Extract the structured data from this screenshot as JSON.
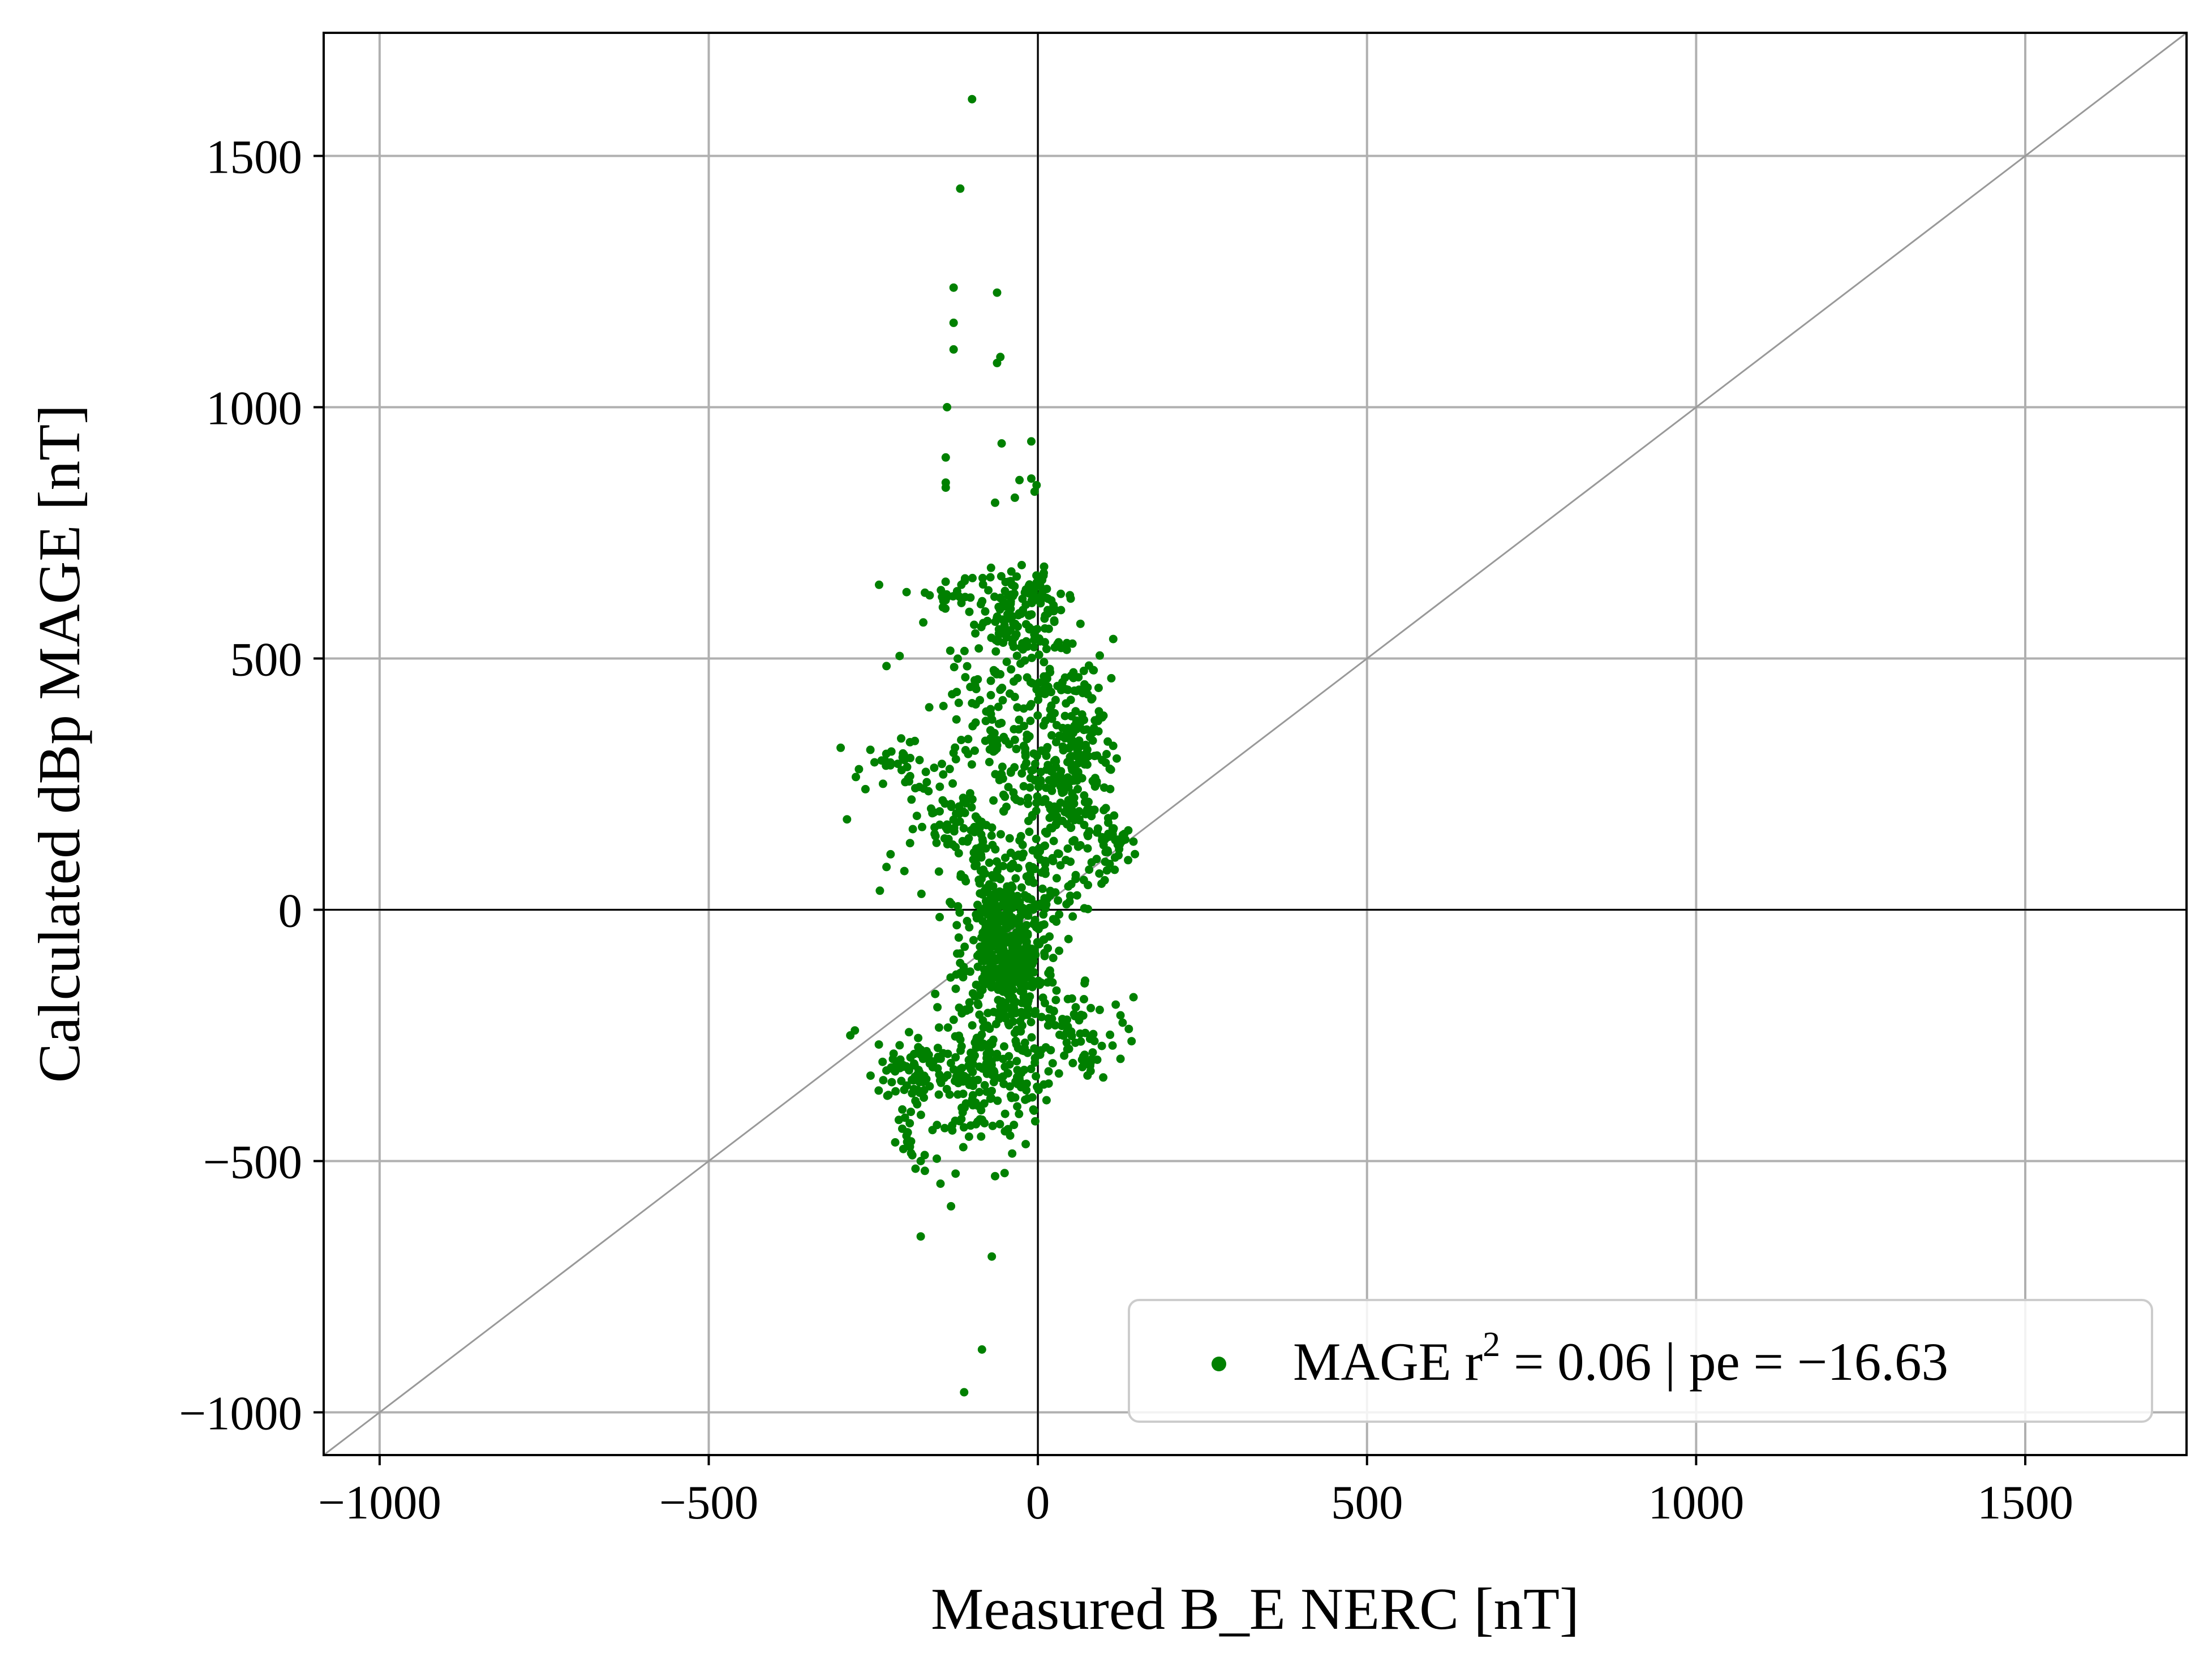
{
  "chart_data": {
    "type": "scatter",
    "title": "",
    "xlabel": "Measured B_E NERC [nT]",
    "ylabel": "Calculated dBp MAGE [nT]",
    "xlim": [
      -1085,
      1745
    ],
    "ylim": [
      -1085,
      1745
    ],
    "x_ticks": [
      -1000,
      -500,
      0,
      500,
      1000,
      1500
    ],
    "y_ticks": [
      -1000,
      -500,
      0,
      500,
      1000,
      1500
    ],
    "x_tick_labels": [
      "−1000",
      "−500",
      "0",
      "500",
      "1000",
      "1500"
    ],
    "y_tick_labels": [
      "−1000",
      "−500",
      "0",
      "500",
      "1000",
      "1500"
    ],
    "grid": true,
    "zero_lines": true,
    "reference_line": "y = x",
    "legend_position": "lower-right",
    "colors": {
      "series": "#008000",
      "grid": "#b0b0b0",
      "reference": "#999999",
      "axes": "#000000"
    },
    "series": [
      {
        "name": "MAGE",
        "legend_label": {
          "prefix": "MAGE r",
          "superscript": "2",
          "suffix": " = 0.06 | pe = −16.63"
        },
        "r2": 0.06,
        "pe": -16.63,
        "outliers": [
          [
            -100,
            1613
          ],
          [
            -118,
            1435
          ],
          [
            -128,
            1238
          ],
          [
            -62,
            1228
          ],
          [
            -128,
            1168
          ],
          [
            -128,
            1115
          ],
          [
            -57,
            1100
          ],
          [
            -62,
            1088
          ],
          [
            -138,
            1000
          ],
          [
            -55,
            928
          ],
          [
            -10,
            932
          ],
          [
            -140,
            900
          ],
          [
            -140,
            850
          ],
          [
            -140,
            840
          ],
          [
            -10,
            858
          ],
          [
            -28,
            855
          ],
          [
            -35,
            820
          ],
          [
            -65,
            810
          ],
          [
            -2,
            845
          ],
          [
            -5,
            832
          ],
          [
            -178,
            -650
          ],
          [
            -70,
            -690
          ],
          [
            -85,
            -875
          ],
          [
            -112,
            -960
          ],
          [
            -132,
            -590
          ],
          [
            -148,
            -545
          ],
          [
            -178,
            -500
          ],
          [
            -125,
            -525
          ],
          [
            -65,
            -530
          ],
          [
            -240,
            38
          ],
          [
            -262,
            240
          ],
          [
            -290,
            180
          ],
          [
            -278,
            -240
          ],
          [
            -285,
            -250
          ],
          [
            -210,
            505
          ],
          [
            -230,
            485
          ]
        ],
        "clusters": [
          {
            "cx": -50,
            "cy": -80,
            "sx": 28,
            "sy": 55,
            "n": 260
          },
          {
            "cx": -45,
            "cy": -200,
            "sx": 40,
            "sy": 110,
            "n": 200
          },
          {
            "cx": -55,
            "cy": 20,
            "sx": 35,
            "sy": 90,
            "n": 150
          },
          {
            "cx": -100,
            "cy": -350,
            "sx": 40,
            "sy": 70,
            "n": 110
          },
          {
            "cx": -180,
            "cy": -320,
            "sx": 35,
            "sy": 30,
            "n": 80
          },
          {
            "cx": -120,
            "cy": 180,
            "sx": 45,
            "sy": 80,
            "n": 110
          },
          {
            "cx": -70,
            "cy": 380,
            "sx": 40,
            "sy": 90,
            "n": 90
          },
          {
            "cx": -25,
            "cy": 570,
            "sx": 35,
            "sy": 45,
            "n": 110
          },
          {
            "cx": -100,
            "cy": 620,
            "sx": 45,
            "sy": 25,
            "n": 40
          },
          {
            "cx": -10,
            "cy": 640,
            "sx": 20,
            "sy": 30,
            "n": 25
          },
          {
            "cx": 45,
            "cy": 250,
            "sx": 35,
            "sy": 75,
            "n": 180
          },
          {
            "cx": 25,
            "cy": 420,
            "sx": 25,
            "sy": 70,
            "n": 60
          },
          {
            "cx": 75,
            "cy": 380,
            "sx": 20,
            "sy": 70,
            "n": 50
          },
          {
            "cx": 110,
            "cy": 120,
            "sx": 20,
            "sy": 45,
            "n": 45
          },
          {
            "cx": 35,
            "cy": 80,
            "sx": 30,
            "sy": 50,
            "n": 50
          },
          {
            "cx": 60,
            "cy": -240,
            "sx": 35,
            "sy": 40,
            "n": 55
          },
          {
            "cx": 70,
            "cy": -310,
            "sx": 15,
            "sy": 25,
            "n": 12
          },
          {
            "cx": -20,
            "cy": -360,
            "sx": 20,
            "sy": 30,
            "n": 20
          },
          {
            "cx": -220,
            "cy": 290,
            "sx": 30,
            "sy": 25,
            "n": 30
          },
          {
            "cx": -200,
            "cy": -420,
            "sx": 20,
            "sy": 40,
            "n": 25
          }
        ]
      }
    ]
  }
}
